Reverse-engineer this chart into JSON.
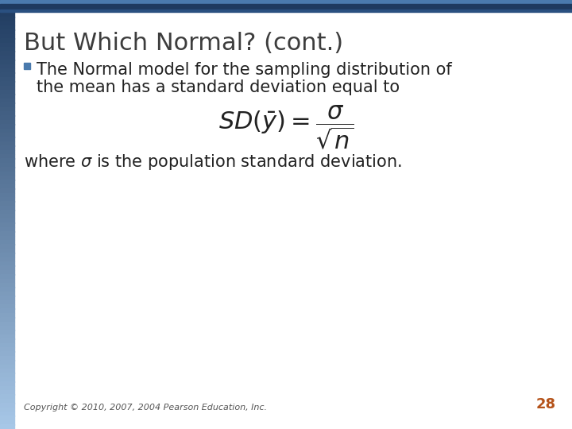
{
  "title": "But Which Normal? (cont.)",
  "title_color": "#3d3d3d",
  "title_fontsize": 22,
  "bullet_text_line1": "The Normal model for the sampling distribution of",
  "bullet_text_line2": "the mean has a standard deviation equal to",
  "text_color": "#222222",
  "text_fontsize": 15,
  "bullet_color": "#4a7aad",
  "copyright_text": "Copyright © 2010, 2007, 2004 Pearson Education, Inc.",
  "page_number": "28",
  "page_number_color": "#b5531a",
  "copyright_fontsize": 8,
  "background_color": "#ffffff",
  "top_bar_dark": "#1e3a5f",
  "top_bar_mid": "#2a5080",
  "top_bar_light": "#4a7aad",
  "left_bar_top": "#1e3a5f",
  "left_bar_bottom": "#a8c8e8",
  "formula_fontsize": 22
}
